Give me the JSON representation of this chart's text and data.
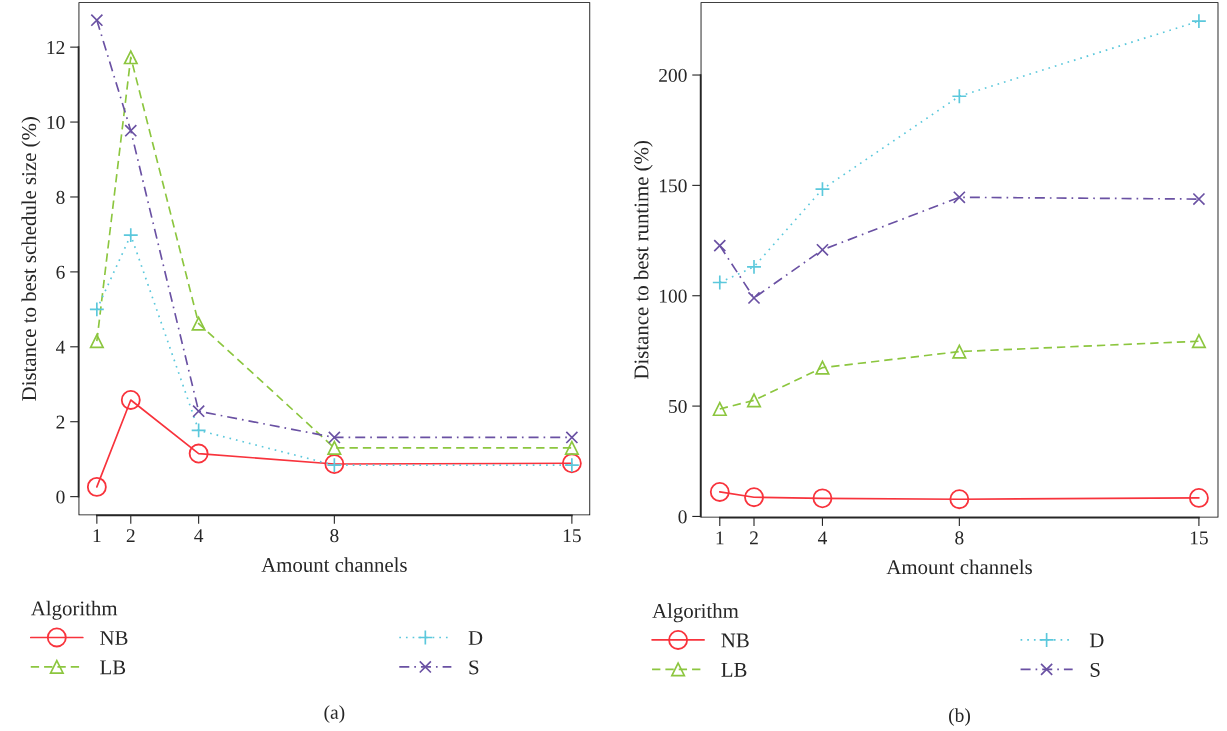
{
  "chart_data": [
    {
      "type": "line",
      "xlabel": "Amount channels",
      "ylabel": "Distance to best schedule size (%)",
      "legend_title": "Algorithm",
      "legend": "bottom",
      "x": [
        1,
        2,
        4,
        8,
        15
      ],
      "xlim": [
        0.46,
        15.54
      ],
      "xticks": [
        1,
        2,
        4,
        8,
        15
      ],
      "ylim": [
        -0.5,
        13.2
      ],
      "yticks": [
        0,
        2,
        4,
        6,
        8,
        10,
        12
      ],
      "grid": false,
      "series": [
        {
          "name": "NB",
          "color": "#f8333c",
          "marker": "circle",
          "line_style": "solid",
          "values": [
            0.26,
            2.58,
            1.15,
            0.87,
            0.89
          ]
        },
        {
          "name": "LB",
          "color": "#8cc63f",
          "marker": "triangle",
          "line_style": "dashed",
          "values": [
            4.15,
            11.73,
            4.62,
            1.3,
            1.3
          ]
        },
        {
          "name": "D",
          "color": "#5bc8dc",
          "marker": "plus",
          "line_style": "dotted",
          "values": [
            5.0,
            6.98,
            1.77,
            0.84,
            0.84
          ]
        },
        {
          "name": "S",
          "color": "#6a51a3",
          "marker": "cross",
          "line_style": "dashdot",
          "values": [
            12.72,
            9.77,
            2.28,
            1.58,
            1.58
          ]
        }
      ],
      "annotations": [
        "(a)"
      ]
    },
    {
      "type": "line",
      "xlabel": "Amount channels",
      "ylabel": "Distance to best runtime (%)",
      "legend_title": "Algorithm",
      "legend": "bottom",
      "x": [
        1,
        2,
        4,
        8,
        15
      ],
      "xlim": [
        0.44,
        15.57
      ],
      "xticks": [
        1,
        2,
        4,
        8,
        15
      ],
      "ylim": [
        -0.5,
        233
      ],
      "yticks": [
        0,
        50,
        100,
        150,
        200
      ],
      "grid": false,
      "series": [
        {
          "name": "NB",
          "color": "#f8333c",
          "marker": "circle",
          "line_style": "solid",
          "values": [
            11.1,
            8.7,
            8.2,
            7.8,
            8.4
          ]
        },
        {
          "name": "LB",
          "color": "#8cc63f",
          "marker": "triangle",
          "line_style": "dashed",
          "values": [
            48.7,
            52.6,
            67.4,
            74.7,
            79.4
          ]
        },
        {
          "name": "D",
          "color": "#5bc8dc",
          "marker": "plus",
          "line_style": "dotted",
          "values": [
            106,
            113.1,
            148.3,
            190.4,
            224.4
          ]
        },
        {
          "name": "S",
          "color": "#6a51a3",
          "marker": "cross",
          "line_style": "dashdot",
          "values": [
            122.7,
            99.0,
            120.8,
            144.6,
            143.8
          ]
        }
      ],
      "annotations": [
        "(b)"
      ]
    }
  ]
}
